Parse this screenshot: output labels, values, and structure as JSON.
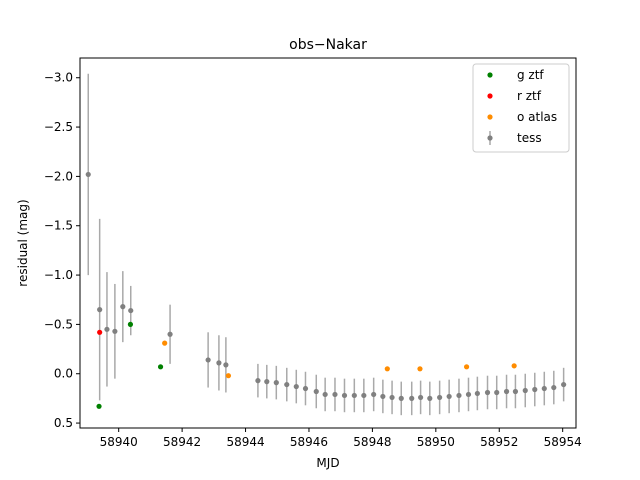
{
  "chart_data": {
    "type": "scatter",
    "title": "obs−Nakar",
    "xlabel": "MJD",
    "ylabel": "residual (mag)",
    "xlim": [
      58938.78,
      58954.42
    ],
    "ylim": [
      0.55,
      -3.2
    ],
    "y_inverted": true,
    "grid": false,
    "legend_position": "top-right",
    "x_ticks": [
      58940,
      58942,
      58944,
      58946,
      58948,
      58950,
      58952,
      58954
    ],
    "y_ticks": [
      -3.0,
      -2.5,
      -2.0,
      -1.5,
      -1.0,
      -0.5,
      0.0,
      0.5
    ],
    "y_tick_labels": [
      "−3.0",
      "−2.5",
      "−2.0",
      "−1.5",
      "−1.0",
      "−0.5",
      "0.0",
      "0.5"
    ],
    "series": [
      {
        "name": "g ztf",
        "color": "#008000",
        "marker": "point",
        "x": [
          58939.38,
          58940.37,
          58941.32
        ],
        "y": [
          0.33,
          -0.5,
          -0.07
        ]
      },
      {
        "name": "r ztf",
        "color": "#ff0000",
        "marker": "point",
        "x": [
          58939.4
        ],
        "y": [
          -0.42
        ]
      },
      {
        "name": "o atlas",
        "color": "#ff8c00",
        "marker": "point",
        "x": [
          58941.45,
          58943.46,
          58948.47,
          58949.5,
          58950.97,
          58952.47
        ],
        "y": [
          -0.31,
          0.02,
          -0.05,
          -0.05,
          -0.07,
          -0.08
        ],
        "y_err": [
          0,
          0,
          0,
          0,
          0,
          0
        ]
      },
      {
        "name": "tess",
        "color": "#808080",
        "ecolor": "#a9a9a9",
        "marker": "errorbar",
        "x": [
          58939.04,
          58939.4,
          58939.63,
          58939.88,
          58940.13,
          58940.38,
          58941.62,
          58942.82,
          58943.16,
          58943.38,
          58944.39,
          58944.67,
          58944.97,
          58945.3,
          58945.6,
          58945.89,
          58946.23,
          58946.51,
          58946.82,
          58947.12,
          58947.43,
          58947.73,
          58948.04,
          58948.33,
          58948.62,
          58948.91,
          58949.24,
          58949.52,
          58949.81,
          58950.12,
          58950.42,
          58950.73,
          58951.03,
          58951.31,
          58951.63,
          58951.92,
          58952.23,
          58952.51,
          58952.82,
          58953.12,
          58953.42,
          58953.72,
          58954.03
        ],
        "y": [
          -2.02,
          -0.65,
          -0.45,
          -0.43,
          -0.68,
          -0.64,
          -0.4,
          -0.14,
          -0.11,
          -0.09,
          0.07,
          0.08,
          0.09,
          0.11,
          0.13,
          0.15,
          0.18,
          0.21,
          0.21,
          0.22,
          0.22,
          0.22,
          0.21,
          0.23,
          0.24,
          0.25,
          0.25,
          0.24,
          0.25,
          0.24,
          0.23,
          0.22,
          0.21,
          0.2,
          0.19,
          0.19,
          0.18,
          0.18,
          0.17,
          0.16,
          0.15,
          0.14,
          0.11
        ],
        "y_err": [
          1.02,
          0.92,
          0.58,
          0.48,
          0.36,
          0.25,
          0.3,
          0.28,
          0.28,
          0.28,
          0.17,
          0.17,
          0.17,
          0.17,
          0.17,
          0.17,
          0.17,
          0.17,
          0.17,
          0.17,
          0.17,
          0.17,
          0.17,
          0.17,
          0.17,
          0.17,
          0.17,
          0.17,
          0.17,
          0.17,
          0.17,
          0.17,
          0.17,
          0.17,
          0.17,
          0.17,
          0.17,
          0.17,
          0.17,
          0.17,
          0.17,
          0.17,
          0.17
        ]
      }
    ]
  }
}
